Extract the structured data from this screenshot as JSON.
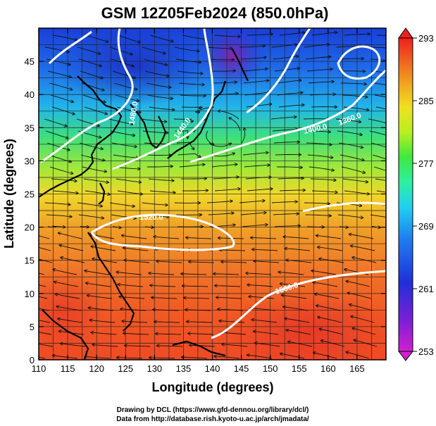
{
  "title": "GSM 12Z05Feb2024 (850.0hPa)",
  "x_axis": {
    "label": "Longitude (degrees)",
    "range": [
      110,
      170
    ],
    "ticks": [
      "110",
      "115",
      "120",
      "125",
      "130",
      "135",
      "140",
      "145",
      "150",
      "155",
      "160",
      "165"
    ]
  },
  "y_axis": {
    "label": "Latitude  (degrees)",
    "range": [
      0,
      50
    ],
    "ticks": [
      "0",
      "5",
      "10",
      "15",
      "20",
      "25",
      "30",
      "35",
      "40",
      "45"
    ]
  },
  "colorbar": {
    "ticks": [
      "253",
      "261",
      "269",
      "277",
      "285",
      "293"
    ],
    "range": [
      253,
      293
    ],
    "colors": [
      "#d21fd0",
      "#7a1fd8",
      "#1f2fd8",
      "#1f7ff0",
      "#1fd0f0",
      "#2ff0a0",
      "#3fe83f",
      "#b8f01f",
      "#f0e01f",
      "#f0a01f",
      "#f0601f",
      "#f01f1f"
    ]
  },
  "contour_labels": [
    {
      "text": "1480.0"
    },
    {
      "text": "1440.0"
    },
    {
      "text": "1400.0"
    },
    {
      "text": "1360.0"
    },
    {
      "text": "1520.0"
    },
    {
      "text": "1560.0"
    }
  ],
  "footer": {
    "line1": "Drawing by DCL (https://www.gfd-dennou.org/library/dcl/)",
    "line2": "Data from http://database.rish.kyoto-u.ac.jp/arch/jmadata/"
  }
}
